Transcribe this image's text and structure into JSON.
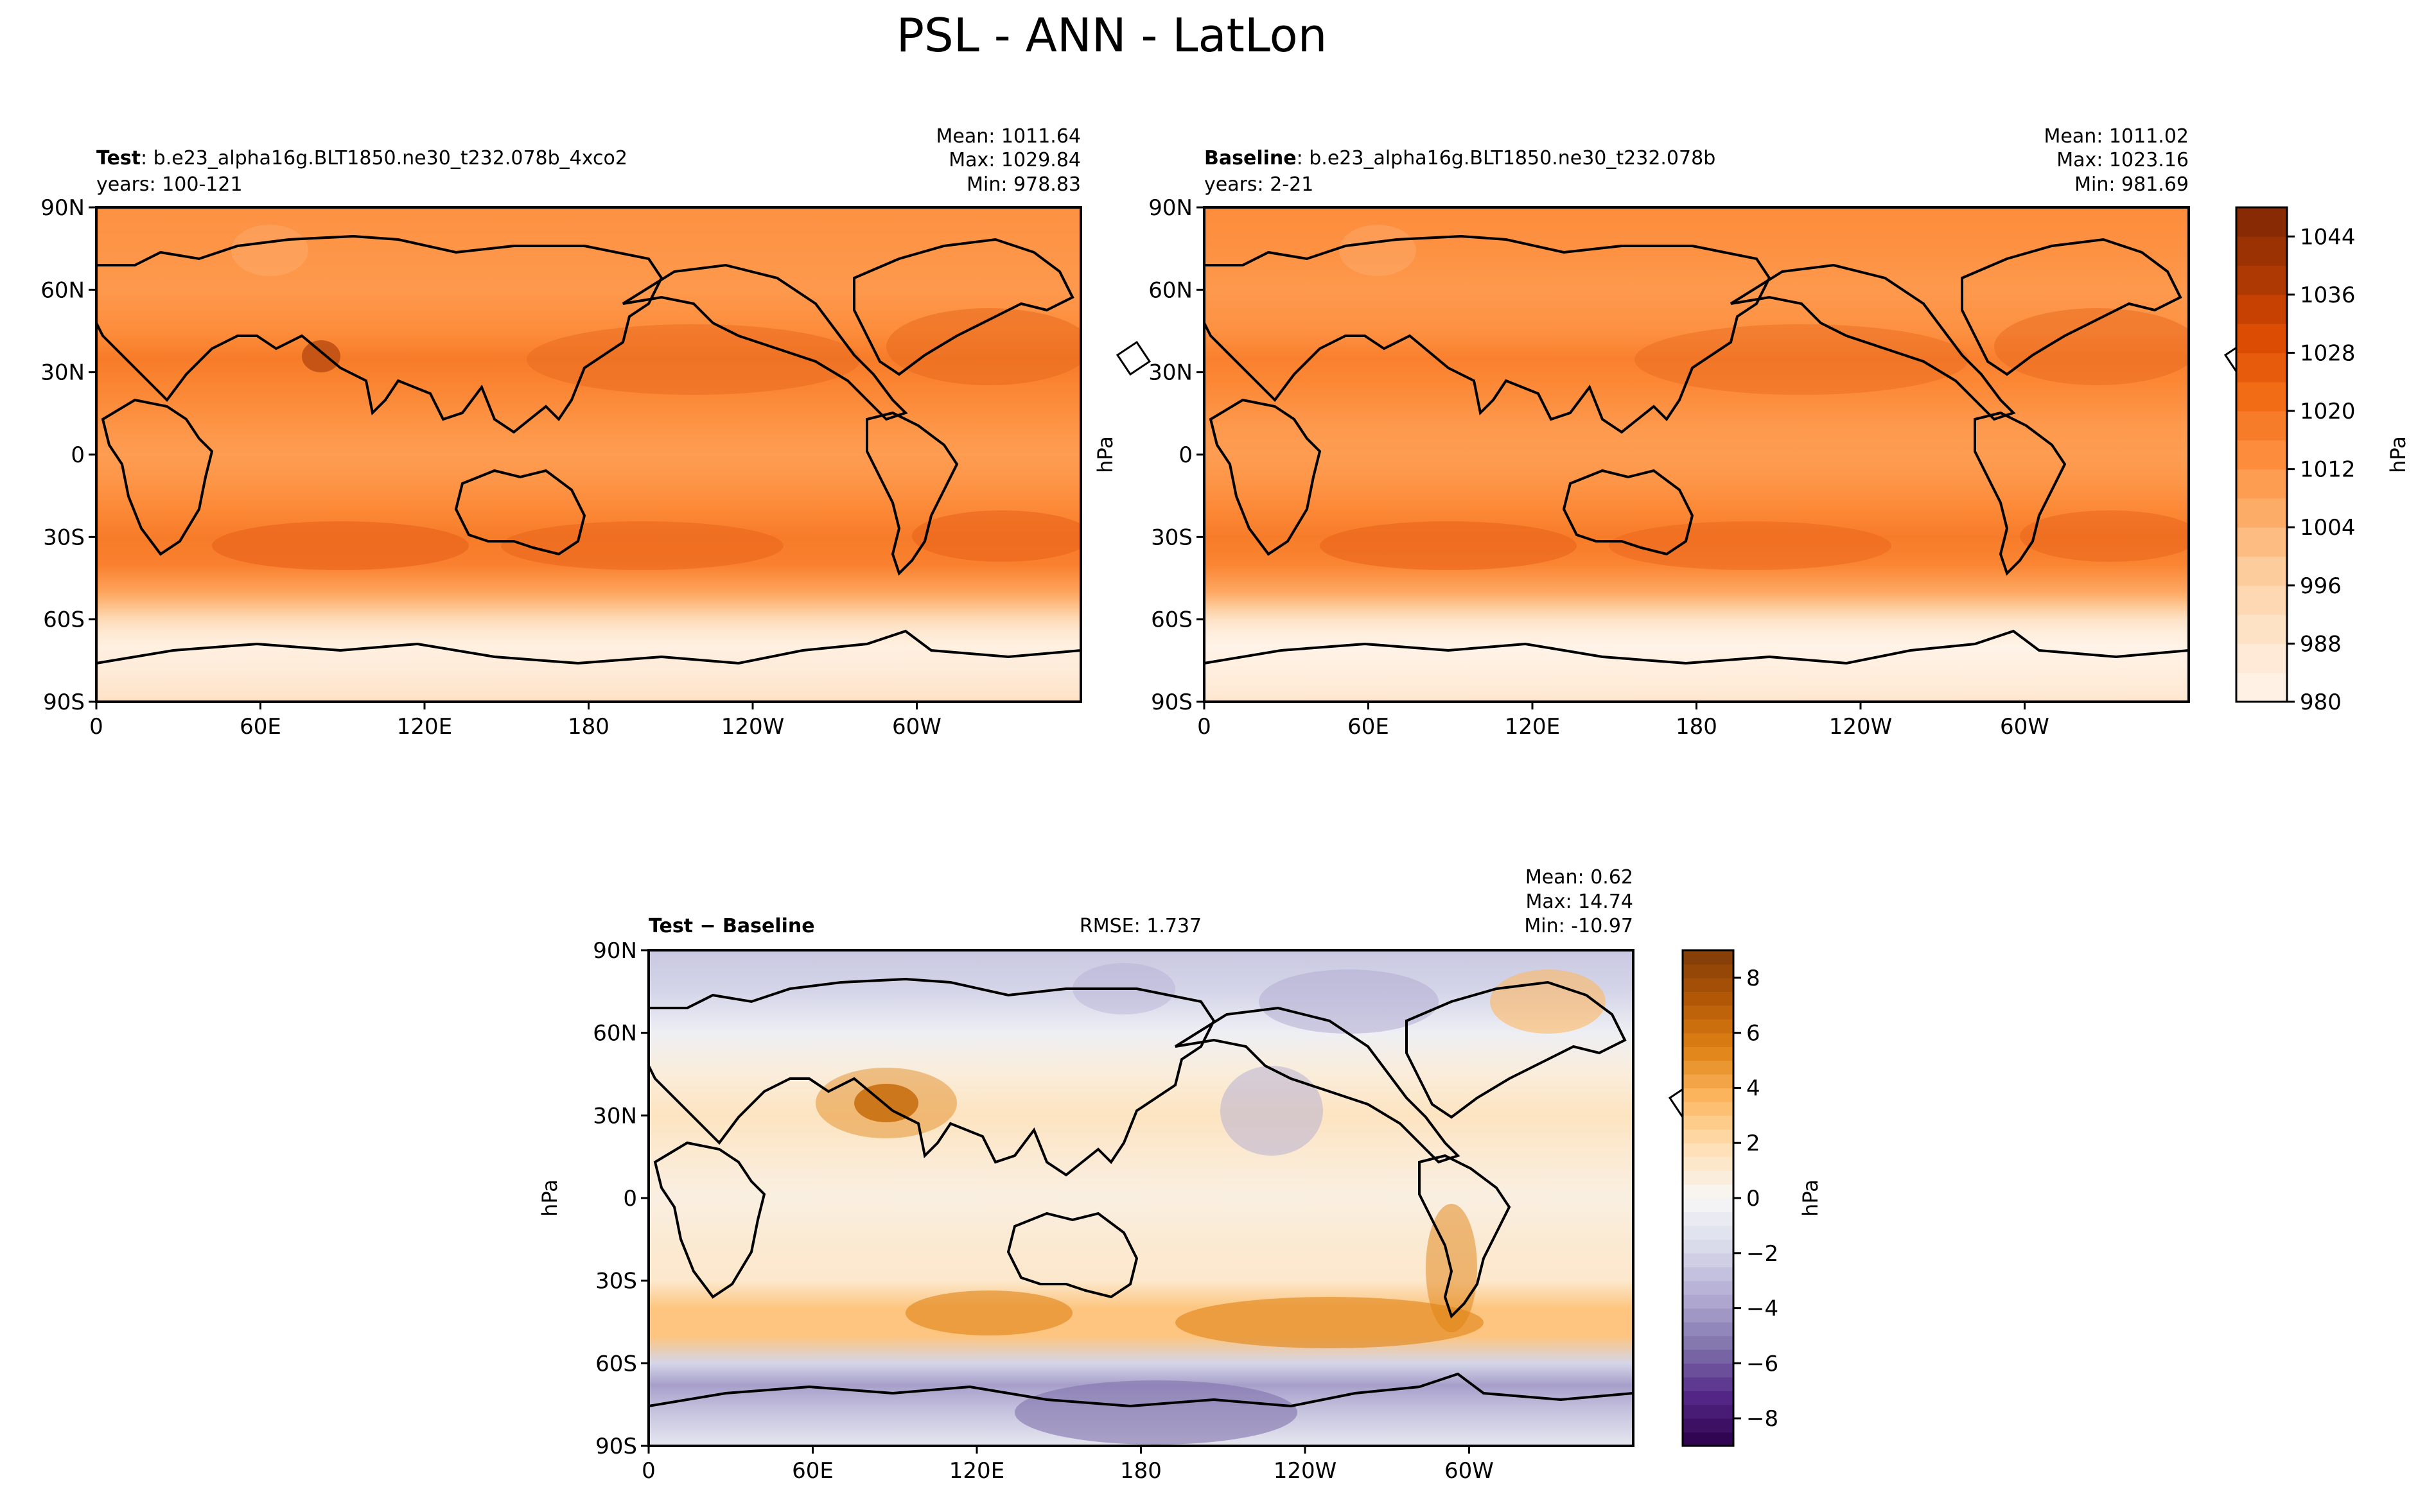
{
  "title": "PSL - ANN - LatLon",
  "panels": {
    "test": {
      "label_bold": "Test",
      "label_rest": ": b.e23_alpha16g.BLT1850.ne30_t232.078b_4xco2",
      "years": "years: 100-121",
      "mean": "Mean: 1011.64",
      "max": "Max: 1029.84",
      "min": "Min: 978.83"
    },
    "baseline": {
      "label_bold": "Baseline",
      "label_rest": ": b.e23_alpha16g.BLT1850.ne30_t232.078b",
      "years": "years: 2-21",
      "mean": "Mean: 1011.02",
      "max": "Max: 1023.16",
      "min": "Min: 981.69"
    },
    "diff": {
      "label_bold": "Test − Baseline",
      "rmse": "RMSE: 1.737",
      "mean": "Mean:  0.62",
      "max": "Max: 14.74",
      "min": "Min: -10.97"
    }
  },
  "axes": {
    "lat_ticks": [
      "90N",
      "60N",
      "30N",
      "0",
      "30S",
      "60S",
      "90S"
    ],
    "lon_ticks": [
      "0",
      "60E",
      "120E",
      "180",
      "120W",
      "60W"
    ],
    "unit_label": "hPa"
  },
  "colors": {
    "psl_low": "#fff5eb",
    "psl_high": "#7f2704",
    "diff_low": "#2d004b",
    "diff_mid": "#f7f7f7",
    "diff_high": "#7f3b08",
    "coast": "#000000"
  },
  "chart_data": [
    {
      "type": "heatmap",
      "name_panel": "test",
      "variable": "PSL",
      "xlabel": "",
      "ylabel": "",
      "xlim": [
        0,
        360
      ],
      "ylim": [
        -90,
        90
      ],
      "grid": false,
      "zonal_profile": {
        "lat": [
          90,
          75,
          60,
          45,
          35,
          25,
          10,
          0,
          -10,
          -20,
          -30,
          -40,
          -50,
          -55,
          -60,
          -65,
          -70,
          -80,
          -90
        ],
        "value": [
          1013,
          1012,
          1011,
          1014,
          1018,
          1016,
          1012,
          1010,
          1012,
          1015,
          1018,
          1017,
          1008,
          1001,
          993,
          987,
          983,
          986,
          990
        ]
      },
      "colorbar": {
        "ticks": [
          980,
          988,
          996,
          1004,
          1012,
          1020,
          1028,
          1036,
          1044
        ],
        "label": "hPa",
        "vmin": 980,
        "vmax": 1048,
        "cmap": "Oranges"
      }
    },
    {
      "type": "heatmap",
      "name_panel": "baseline",
      "variable": "PSL",
      "xlabel": "",
      "ylabel": "hPa",
      "xlim": [
        0,
        360
      ],
      "ylim": [
        -90,
        90
      ],
      "grid": false,
      "zonal_profile": {
        "lat": [
          90,
          75,
          60,
          45,
          35,
          25,
          10,
          0,
          -10,
          -20,
          -30,
          -40,
          -50,
          -55,
          -60,
          -65,
          -70,
          -80,
          -90
        ],
        "value": [
          1014,
          1013,
          1011,
          1013,
          1017,
          1015,
          1011,
          1010,
          1012,
          1015,
          1018,
          1016,
          1007,
          999,
          990,
          984,
          981,
          984,
          988
        ]
      },
      "colorbar": {
        "ticks": [
          980,
          988,
          996,
          1004,
          1012,
          1020,
          1028,
          1036,
          1044
        ],
        "label": "hPa",
        "vmin": 980,
        "vmax": 1048,
        "cmap": "Oranges"
      }
    },
    {
      "type": "heatmap",
      "name_panel": "diff",
      "variable": "PSL difference",
      "xlabel": "",
      "ylabel": "hPa",
      "xlim": [
        0,
        360
      ],
      "ylim": [
        -90,
        90
      ],
      "grid": false,
      "zonal_profile": {
        "lat": [
          90,
          75,
          60,
          45,
          30,
          15,
          0,
          -15,
          -30,
          -40,
          -50,
          -60,
          -68,
          -75,
          -90
        ],
        "value": [
          -2.5,
          -2,
          -0.5,
          0.8,
          1.5,
          1,
          0.6,
          1,
          1.2,
          3,
          3,
          -2,
          -4,
          -3,
          -1
        ]
      },
      "colorbar": {
        "ticks": [
          8,
          6,
          4,
          2,
          0,
          -2,
          -4,
          -6,
          -8
        ],
        "label": "hPa",
        "vmin": -9,
        "vmax": 9,
        "cmap": "PuOr_r"
      }
    }
  ]
}
